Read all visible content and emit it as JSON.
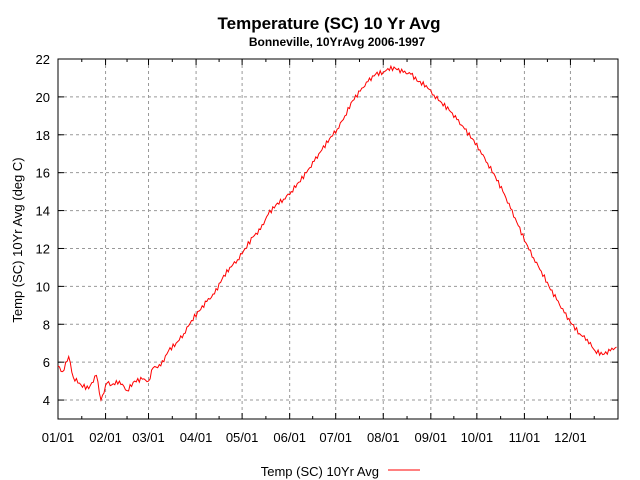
{
  "chart_data": {
    "type": "line",
    "title": "Temperature (SC) 10 Yr Avg",
    "subtitle": "Bonneville, 10YrAvg 2006-1997",
    "xlabel": "",
    "ylabel": "Temp (SC) 10Yr Avg (deg C)",
    "xlim": [
      0,
      365
    ],
    "ylim": [
      3,
      22
    ],
    "grid": true,
    "legend_placement": "bottom-center",
    "x_ticks": [
      {
        "label": "01/01",
        "day": 0
      },
      {
        "label": "02/01",
        "day": 31
      },
      {
        "label": "03/01",
        "day": 59
      },
      {
        "label": "04/01",
        "day": 90
      },
      {
        "label": "05/01",
        "day": 120
      },
      {
        "label": "06/01",
        "day": 151
      },
      {
        "label": "07/01",
        "day": 181
      },
      {
        "label": "08/01",
        "day": 212
      },
      {
        "label": "09/01",
        "day": 243
      },
      {
        "label": "10/01",
        "day": 273
      },
      {
        "label": "11/01",
        "day": 304
      },
      {
        "label": "12/01",
        "day": 334
      }
    ],
    "y_ticks": [
      4,
      6,
      8,
      10,
      12,
      14,
      16,
      18,
      20,
      22
    ],
    "series": [
      {
        "name": "Temp (SC) 10Yr Avg",
        "color": "#ff0000",
        "x": [
          0,
          3,
          7,
          10,
          15,
          20,
          25,
          28,
          32,
          35,
          40,
          45,
          50,
          55,
          59,
          62,
          67,
          72,
          77,
          82,
          87,
          92,
          97,
          102,
          107,
          112,
          117,
          122,
          127,
          132,
          137,
          142,
          147,
          152,
          157,
          162,
          167,
          172,
          177,
          182,
          187,
          192,
          197,
          202,
          207,
          212,
          215,
          220,
          225,
          230,
          235,
          240,
          245,
          250,
          255,
          260,
          265,
          270,
          275,
          280,
          285,
          290,
          295,
          300,
          305,
          310,
          315,
          320,
          325,
          330,
          335,
          340,
          345,
          350,
          355,
          360,
          364
        ],
        "y": [
          5.8,
          5.5,
          6.3,
          5.2,
          4.8,
          4.6,
          5.3,
          4.0,
          4.9,
          4.8,
          5.0,
          4.5,
          5.0,
          5.1,
          5.0,
          5.7,
          5.8,
          6.6,
          7.0,
          7.5,
          8.2,
          8.7,
          9.2,
          9.6,
          10.4,
          11.0,
          11.4,
          12.0,
          12.6,
          13.0,
          13.8,
          14.3,
          14.6,
          15.0,
          15.5,
          16.0,
          16.6,
          17.2,
          17.8,
          18.3,
          19.0,
          19.8,
          20.3,
          20.8,
          21.2,
          21.3,
          21.5,
          21.5,
          21.3,
          21.2,
          20.8,
          20.6,
          20.1,
          19.7,
          19.3,
          18.8,
          18.3,
          17.8,
          17.2,
          16.5,
          15.8,
          15.0,
          14.1,
          13.2,
          12.3,
          11.5,
          10.8,
          10.0,
          9.3,
          8.6,
          8.0,
          7.5,
          7.2,
          6.6,
          6.4,
          6.6,
          6.8
        ]
      }
    ]
  }
}
